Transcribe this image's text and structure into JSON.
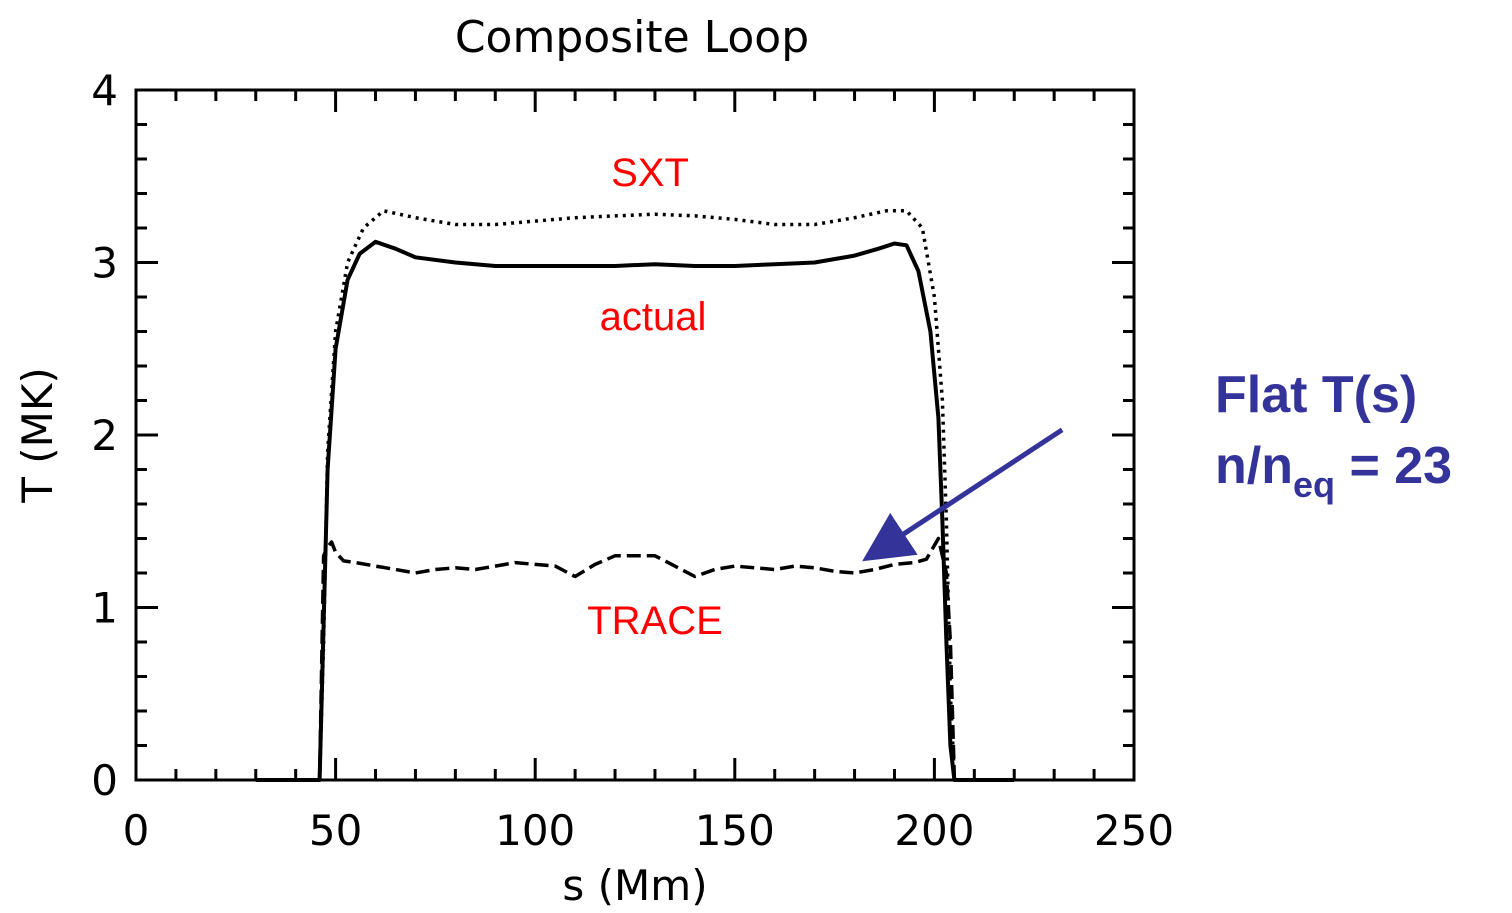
{
  "chart_data": {
    "type": "line",
    "title": "Composite Loop",
    "xlabel": "s (Mm)",
    "ylabel": "T (MK)",
    "xlim": [
      0,
      250
    ],
    "ylim": [
      0,
      4
    ],
    "xticks": [
      0,
      50,
      100,
      150,
      200,
      250
    ],
    "yticks": [
      0,
      1,
      2,
      3,
      4
    ],
    "grid": false,
    "series": [
      {
        "name": "SXT",
        "style": "dotted",
        "color": "#000000",
        "x": [
          30,
          46,
          47,
          48,
          50,
          53,
          57,
          62,
          70,
          80,
          90,
          100,
          110,
          120,
          130,
          140,
          150,
          160,
          170,
          180,
          188,
          193,
          197,
          200,
          202,
          203,
          204,
          205,
          220
        ],
        "y": [
          0,
          0,
          0.8,
          1.9,
          2.6,
          3.0,
          3.2,
          3.3,
          3.26,
          3.22,
          3.22,
          3.24,
          3.26,
          3.27,
          3.28,
          3.27,
          3.25,
          3.22,
          3.22,
          3.26,
          3.3,
          3.3,
          3.2,
          2.8,
          2.2,
          1.5,
          0.5,
          0,
          0
        ]
      },
      {
        "name": "actual",
        "style": "solid",
        "color": "#000000",
        "x": [
          30,
          46,
          47,
          48,
          50,
          53,
          56,
          60,
          65,
          70,
          80,
          90,
          100,
          110,
          120,
          130,
          140,
          150,
          160,
          170,
          180,
          186,
          190,
          193,
          196,
          199,
          201,
          202,
          203,
          204,
          205,
          220
        ],
        "y": [
          0,
          0,
          0.9,
          1.8,
          2.5,
          2.9,
          3.05,
          3.12,
          3.08,
          3.03,
          3.0,
          2.98,
          2.98,
          2.98,
          2.98,
          2.99,
          2.98,
          2.98,
          2.99,
          3.0,
          3.04,
          3.08,
          3.11,
          3.1,
          2.95,
          2.6,
          2.1,
          1.5,
          0.8,
          0.2,
          0,
          0
        ]
      },
      {
        "name": "TRACE",
        "style": "dashed",
        "color": "#000000",
        "x": [
          30,
          46,
          47,
          48,
          49,
          50,
          52,
          55,
          60,
          65,
          70,
          75,
          80,
          85,
          90,
          95,
          100,
          105,
          110,
          115,
          120,
          125,
          130,
          135,
          140,
          145,
          150,
          155,
          160,
          165,
          170,
          175,
          180,
          185,
          190,
          195,
          198,
          200,
          201,
          202,
          203,
          204,
          205,
          220
        ],
        "y": [
          0,
          0,
          1.3,
          1.35,
          1.38,
          1.32,
          1.27,
          1.26,
          1.24,
          1.22,
          1.2,
          1.22,
          1.23,
          1.22,
          1.24,
          1.26,
          1.25,
          1.24,
          1.18,
          1.25,
          1.3,
          1.3,
          1.3,
          1.24,
          1.18,
          1.22,
          1.24,
          1.23,
          1.22,
          1.24,
          1.23,
          1.21,
          1.2,
          1.22,
          1.25,
          1.26,
          1.28,
          1.36,
          1.4,
          1.3,
          1.2,
          0.8,
          0,
          0
        ]
      }
    ],
    "annotations": {
      "sxt_label": "SXT",
      "actual_label": "actual",
      "trace_label": "TRACE",
      "note_line1": "Flat T(s)",
      "note_n": "n/n",
      "note_sub": "eq",
      "note_value": " = 23"
    },
    "arrow": {
      "from": [
        232,
        2.03
      ],
      "to": [
        184,
        1.3
      ],
      "color": "#333399"
    }
  }
}
